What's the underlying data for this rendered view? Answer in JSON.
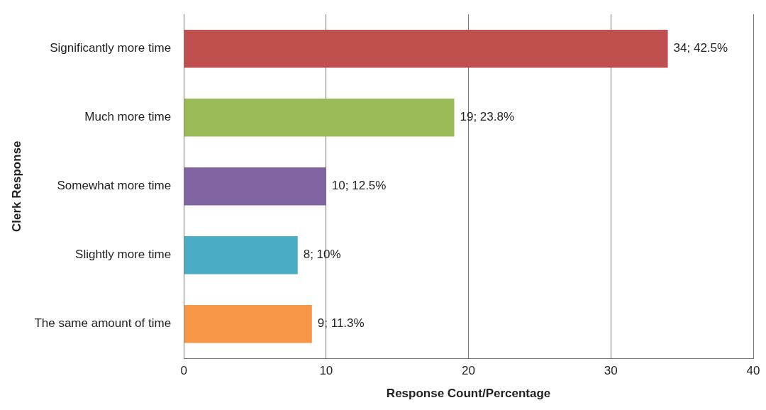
{
  "chart_data": {
    "type": "bar",
    "orientation": "horizontal",
    "xlabel": "Response Count/Percentage",
    "ylabel": "Clerk Response",
    "categories": [
      "Significantly more time",
      "Much more time",
      "Somewhat more time",
      "Slightly more time",
      "The same amount of time"
    ],
    "values": [
      34,
      19,
      10,
      8,
      9
    ],
    "colors": [
      "#c0504d",
      "#9bbb59",
      "#8064a2",
      "#4bacc6",
      "#f79646"
    ],
    "value_labels": [
      "34; 42.5%",
      "19; 23.8%",
      "10; 12.5%",
      "8; 10%",
      "9; 11.3%"
    ],
    "xlim": [
      0,
      40
    ],
    "xticks": [
      0,
      10,
      20,
      30,
      40
    ],
    "grid": "x"
  }
}
